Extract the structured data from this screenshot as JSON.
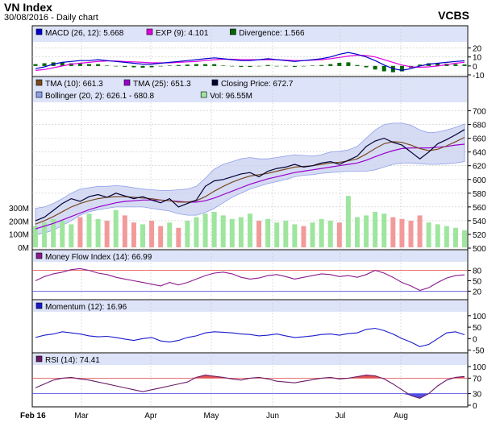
{
  "header": {
    "title": "VN Index",
    "subtitle": "30/08/2016 - Daily chart",
    "brand": "VCBS"
  },
  "colors": {
    "macd": "#0000cc",
    "exp": "#e000e0",
    "divergence": "#006600",
    "tma10": "#7a4a1e",
    "tma25": "#9900cc",
    "close": "#000033",
    "bollinger_fill": "#c8cff0",
    "vol_up": "#9ee59e",
    "vol_down": "#f29a9a",
    "panel_header": "#dde3f8",
    "grid": "#c8c8c8",
    "mfi": "#8b1a8b",
    "momentum": "#1a1acc",
    "rsi": "#6a1a6a",
    "ref_red": "#e04040",
    "ref_blue": "#4040e0"
  },
  "x_axis": {
    "labels": [
      "Feb 16",
      "Mar",
      "Apr",
      "May",
      "Jun",
      "Jul",
      "Aug"
    ]
  },
  "chart_data": [
    {
      "type": "line",
      "panel": "macd",
      "legend": [
        {
          "label": "MACD (26, 12): 5.668",
          "color": "#0000cc"
        },
        {
          "label": "EXP (9): 4.101",
          "color": "#e000e0"
        },
        {
          "label": "Divergence: 1.566",
          "color": "#006600"
        }
      ],
      "ylim": [
        -10,
        25
      ],
      "yticks": [
        20,
        10,
        0,
        -10
      ],
      "series": [
        {
          "name": "MACD (26, 12)",
          "values": [
            -3,
            -1,
            2,
            4,
            5,
            6,
            6,
            7,
            6,
            5,
            4,
            3,
            2,
            2,
            3,
            4,
            5,
            6,
            7,
            8,
            9,
            8,
            7,
            6,
            6,
            7,
            8,
            7,
            6,
            5,
            6,
            7,
            8,
            10,
            13,
            15,
            13,
            10,
            6,
            1,
            -3,
            -5,
            -3,
            0,
            2,
            3,
            4,
            5,
            5.7
          ]
        },
        {
          "name": "EXP (9)",
          "values": [
            -5,
            -4,
            -2,
            0,
            2,
            3,
            4,
            5,
            5.5,
            5.5,
            5,
            4.5,
            4,
            3.5,
            3.5,
            3.5,
            4,
            4.5,
            5,
            6,
            7,
            7.5,
            7.5,
            7,
            7,
            7,
            7,
            7,
            6.5,
            6,
            6,
            6.5,
            7,
            8,
            9.5,
            11,
            12,
            11.5,
            10,
            7,
            4,
            1,
            -1,
            -1.5,
            -1,
            0,
            1.5,
            3,
            4.1
          ]
        },
        {
          "name": "Divergence",
          "values": [
            2,
            3,
            4,
            4,
            3,
            3,
            2,
            2,
            0.5,
            -0.5,
            -1,
            -1.5,
            -2,
            -1.5,
            -0.5,
            0.5,
            1,
            1.5,
            2,
            2,
            2,
            0.5,
            -0.5,
            -1,
            -1,
            0,
            1,
            0,
            -0.5,
            -1,
            0,
            0.5,
            1,
            2,
            3.5,
            4,
            1,
            -1.5,
            -4,
            -6,
            -7,
            -6,
            -2,
            1.5,
            3,
            3,
            2.5,
            2,
            1.6
          ]
        }
      ]
    },
    {
      "type": "line",
      "panel": "price",
      "legend": [
        {
          "label": "TMA (10): 661.3",
          "color": "#7a4a1e"
        },
        {
          "label": "TMA (25): 651.3",
          "color": "#9900cc"
        },
        {
          "label": "Closing Price: 672.7",
          "color": "#000033"
        },
        {
          "label": "Bollinger (20, 2): 626.1 - 680.8",
          "color": "#8fa0e8"
        },
        {
          "label": "Vol: 96.55M",
          "color": "#9ee59e"
        }
      ],
      "ylim": [
        500,
        710
      ],
      "yticks": [
        700,
        680,
        660,
        640,
        620,
        600,
        580,
        560,
        540,
        520,
        500
      ],
      "volume_ticks": [
        "300M",
        "200M",
        "100M",
        "0M"
      ],
      "series": [
        {
          "name": "Closing Price",
          "values": [
            540,
            545,
            555,
            565,
            572,
            568,
            575,
            578,
            574,
            580,
            576,
            572,
            575,
            570,
            566,
            572,
            560,
            565,
            570,
            590,
            598,
            600,
            604,
            608,
            610,
            604,
            612,
            616,
            618,
            622,
            618,
            620,
            624,
            626,
            622,
            628,
            634,
            648,
            656,
            660,
            654,
            650,
            640,
            630,
            640,
            652,
            658,
            665,
            672.7
          ]
        },
        {
          "name": "TMA (10)",
          "values": [
            535,
            540,
            546,
            553,
            560,
            565,
            569,
            572,
            574,
            575,
            575,
            574,
            573,
            572,
            570,
            569,
            567,
            567,
            569,
            575,
            583,
            590,
            596,
            601,
            605,
            607,
            609,
            612,
            615,
            618,
            619,
            620,
            622,
            624,
            625,
            627,
            630,
            637,
            645,
            652,
            655,
            654,
            650,
            645,
            642,
            644,
            649,
            655,
            661.3
          ]
        },
        {
          "name": "TMA (25)",
          "values": [
            528,
            532,
            536,
            541,
            546,
            551,
            556,
            560,
            563,
            566,
            568,
            569,
            570,
            570,
            570,
            569,
            568,
            567,
            567,
            569,
            573,
            578,
            583,
            588,
            593,
            597,
            601,
            604,
            607,
            610,
            612,
            614,
            616,
            618,
            620,
            622,
            624,
            628,
            633,
            638,
            642,
            645,
            646,
            646,
            646,
            647,
            648,
            650,
            651.3
          ]
        },
        {
          "name": "Bollinger Upper",
          "values": [
            558,
            560,
            565,
            572,
            580,
            586,
            588,
            590,
            590,
            591,
            590,
            588,
            586,
            585,
            584,
            584,
            585,
            586,
            590,
            602,
            615,
            622,
            626,
            630,
            632,
            630,
            630,
            632,
            634,
            636,
            635,
            634,
            636,
            640,
            641,
            643,
            648,
            660,
            672,
            680,
            682,
            682,
            679,
            672,
            668,
            669,
            672,
            676,
            680.8
          ]
        },
        {
          "name": "Bollinger Lower",
          "values": [
            520,
            522,
            526,
            533,
            540,
            548,
            553,
            556,
            558,
            560,
            560,
            560,
            560,
            558,
            556,
            554,
            550,
            548,
            548,
            552,
            558,
            566,
            574,
            580,
            586,
            590,
            594,
            597,
            600,
            604,
            606,
            607,
            609,
            610,
            611,
            612,
            612,
            612,
            614,
            618,
            622,
            624,
            624,
            623,
            622,
            622,
            623,
            624,
            626.1
          ]
        },
        {
          "name": "Vol",
          "values": [
            120,
            140,
            160,
            150,
            130,
            170,
            190,
            160,
            150,
            210,
            180,
            140,
            130,
            150,
            120,
            140,
            110,
            150,
            170,
            190,
            200,
            180,
            160,
            170,
            190,
            150,
            160,
            140,
            150,
            130,
            120,
            140,
            160,
            150,
            140,
            290,
            170,
            180,
            200,
            190,
            170,
            160,
            150,
            180,
            140,
            130,
            120,
            110,
            96.55
          ]
        }
      ]
    },
    {
      "type": "line",
      "panel": "mfi",
      "legend": [
        {
          "label": "Money Flow Index (14): 66.99",
          "color": "#8b1a8b"
        }
      ],
      "ylim": [
        0,
        100
      ],
      "yticks": [
        80,
        50,
        20
      ],
      "ref_lines": [
        80,
        20
      ],
      "series": [
        {
          "name": "Money Flow Index (14)",
          "values": [
            50,
            62,
            70,
            75,
            82,
            85,
            80,
            72,
            68,
            60,
            55,
            50,
            45,
            40,
            35,
            45,
            38,
            45,
            55,
            65,
            72,
            75,
            70,
            60,
            55,
            58,
            65,
            68,
            62,
            55,
            60,
            65,
            70,
            68,
            62,
            65,
            60,
            68,
            80,
            72,
            60,
            45,
            35,
            22,
            30,
            45,
            58,
            65,
            67
          ]
        }
      ]
    },
    {
      "type": "line",
      "panel": "momentum",
      "legend": [
        {
          "label": "Momentum (12): 16.96",
          "color": "#1a1acc"
        }
      ],
      "ylim": [
        -55,
        110
      ],
      "yticks": [
        100,
        50,
        0,
        -50
      ],
      "series": [
        {
          "name": "Momentum (12)",
          "values": [
            5,
            15,
            20,
            30,
            25,
            20,
            12,
            8,
            10,
            5,
            -2,
            -8,
            0,
            5,
            -10,
            -15,
            -8,
            5,
            12,
            25,
            30,
            28,
            25,
            20,
            18,
            12,
            15,
            20,
            12,
            5,
            8,
            12,
            18,
            20,
            15,
            22,
            25,
            40,
            45,
            35,
            20,
            0,
            -15,
            -35,
            -25,
            0,
            25,
            30,
            17
          ]
        }
      ]
    },
    {
      "type": "area",
      "panel": "rsi",
      "legend": [
        {
          "label": "RSI (14): 74.41",
          "color": "#6a1a6a"
        }
      ],
      "ylim": [
        0,
        100
      ],
      "yticks": [
        100,
        70,
        30,
        0
      ],
      "ref_lines": [
        70,
        30
      ],
      "series": [
        {
          "name": "RSI (14)",
          "values": [
            45,
            55,
            65,
            70,
            72,
            68,
            65,
            60,
            55,
            50,
            45,
            40,
            35,
            40,
            45,
            50,
            55,
            60,
            72,
            78,
            75,
            72,
            68,
            65,
            70,
            72,
            68,
            62,
            60,
            58,
            62,
            66,
            70,
            72,
            68,
            70,
            74,
            78,
            76,
            68,
            55,
            40,
            25,
            18,
            30,
            50,
            65,
            72,
            74.41
          ]
        }
      ]
    }
  ]
}
